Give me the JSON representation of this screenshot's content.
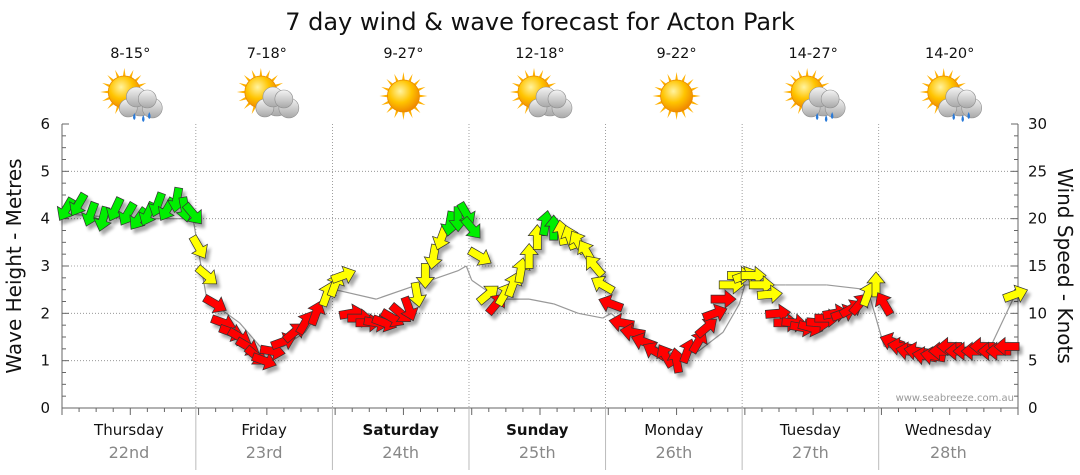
{
  "chart_data": {
    "type": "line",
    "title": "7 day wind & wave forecast for Acton Park",
    "ylabel_left": "Wave Height - Metres",
    "ylabel_right": "Wind Speed - Knots",
    "ylim_left": [
      0,
      6
    ],
    "ylim_right": [
      0,
      30
    ],
    "yticks_left": [
      "0",
      "1",
      "2",
      "3",
      "4",
      "5",
      "6"
    ],
    "yticks_right": [
      "0",
      "5",
      "10",
      "15",
      "20",
      "25",
      "30"
    ],
    "credit": "www.seabreeze.com.au",
    "days": [
      {
        "name": "Thursday",
        "date": "22nd",
        "temp": "8-15°",
        "icon": "sun-cloud-rain-icon",
        "bold": false
      },
      {
        "name": "Friday",
        "date": "23rd",
        "temp": "7-18°",
        "icon": "sun-cloud-icon",
        "bold": false
      },
      {
        "name": "Saturday",
        "date": "24th",
        "temp": "9-27°",
        "icon": "sun-icon",
        "bold": true
      },
      {
        "name": "Sunday",
        "date": "25th",
        "temp": "12-18°",
        "icon": "sun-cloud-icon",
        "bold": true
      },
      {
        "name": "Monday",
        "date": "26th",
        "temp": "9-22°",
        "icon": "sun-icon",
        "bold": false
      },
      {
        "name": "Tuesday",
        "date": "27th",
        "temp": "14-27°",
        "icon": "sun-cloud-rain-icon",
        "bold": false
      },
      {
        "name": "Wednesday",
        "date": "28th",
        "temp": "14-20°",
        "icon": "sun-cloud-rain-icon",
        "bold": false
      }
    ],
    "x_range_days": [
      0,
      7
    ],
    "day_boundaries": [
      0.98,
      1.98,
      2.98,
      3.98,
      4.98,
      5.98
    ],
    "wind_colors": {
      "light": "#00ee00",
      "moderate": "#ffff00",
      "strong": "#ff0000"
    },
    "wind_series": {
      "name": "Wind speed (knots) and direction",
      "x": [
        0.03,
        0.12,
        0.21,
        0.3,
        0.39,
        0.48,
        0.56,
        0.63,
        0.7,
        0.77,
        0.84,
        0.9,
        0.96,
        1.0,
        1.06,
        1.12,
        1.18,
        1.24,
        1.3,
        1.36,
        1.42,
        1.48,
        1.54,
        1.62,
        1.7,
        1.78,
        1.86,
        1.94,
        2.0,
        2.06,
        2.12,
        2.18,
        2.24,
        2.3,
        2.36,
        2.42,
        2.48,
        2.54,
        2.6,
        2.66,
        2.72,
        2.78,
        2.84,
        2.9,
        2.96,
        3.0,
        3.06,
        3.12,
        3.18,
        3.24,
        3.3,
        3.36,
        3.42,
        3.48,
        3.54,
        3.6,
        3.66,
        3.72,
        3.78,
        3.84,
        3.9,
        3.96,
        4.02,
        4.1,
        4.18,
        4.26,
        4.34,
        4.42,
        4.5,
        4.58,
        4.66,
        4.72,
        4.78,
        4.84,
        4.9,
        4.96,
        5.0,
        5.06,
        5.12,
        5.18,
        5.24,
        5.3,
        5.36,
        5.42,
        5.48,
        5.54,
        5.6,
        5.66,
        5.72,
        5.78,
        5.84,
        5.9,
        5.96,
        6.02,
        6.08,
        6.14,
        6.2,
        6.26,
        6.32,
        6.38,
        6.44,
        6.5,
        6.56,
        6.62,
        6.68,
        6.74,
        6.8,
        6.86,
        6.92,
        6.98
      ],
      "y": [
        21,
        21.5,
        20.5,
        20,
        21,
        20.5,
        20,
        20.5,
        21.5,
        21,
        22,
        21,
        20.5,
        17,
        14,
        11,
        9,
        8,
        7.5,
        6.5,
        5.5,
        5,
        6,
        7,
        8,
        9,
        10,
        12,
        13,
        14,
        10,
        9.5,
        9,
        9,
        9,
        9.5,
        10,
        10.5,
        12,
        14,
        16,
        18,
        19.5,
        20,
        20.5,
        19,
        16,
        12,
        11,
        12,
        13,
        14.5,
        16,
        18,
        19.5,
        19,
        18.5,
        18,
        17.5,
        16.5,
        15,
        13,
        11,
        9,
        8,
        7,
        6,
        5.5,
        5,
        6,
        7,
        8.5,
        10,
        11.5,
        13,
        14,
        14,
        14,
        13,
        12,
        10,
        9,
        9,
        8.5,
        8.5,
        9,
        9.5,
        10,
        10,
        10.5,
        11,
        12,
        13,
        11,
        7,
        6.5,
        6,
        6,
        5.5,
        5.5,
        6,
        6.5,
        6,
        6,
        6,
        6.5,
        6,
        6,
        6.5,
        12
      ],
      "dir_deg": [
        30,
        30,
        20,
        15,
        25,
        30,
        35,
        25,
        20,
        30,
        10,
        350,
        320,
        330,
        310,
        300,
        290,
        290,
        300,
        300,
        310,
        290,
        280,
        250,
        230,
        210,
        200,
        200,
        200,
        250,
        260,
        270,
        270,
        280,
        290,
        300,
        310,
        340,
        350,
        0,
        10,
        20,
        10,
        0,
        330,
        320,
        300,
        230,
        220,
        210,
        200,
        190,
        180,
        180,
        190,
        180,
        170,
        160,
        150,
        150,
        140,
        120,
        110,
        100,
        100,
        110,
        120,
        150,
        170,
        200,
        210,
        230,
        250,
        270,
        270,
        270,
        250,
        270,
        270,
        265,
        265,
        270,
        275,
        280,
        285,
        275,
        270,
        260,
        250,
        240,
        220,
        200,
        180,
        150,
        110,
        100,
        100,
        100,
        100,
        100,
        90,
        90,
        90,
        90,
        90,
        90,
        90,
        90,
        90,
        250
      ]
    },
    "wave_series": {
      "name": "Wave height (metres)",
      "x": [
        0.03,
        0.5,
        0.96,
        1.0,
        1.06,
        1.3,
        1.48,
        1.62,
        1.78,
        1.94,
        2.0,
        2.3,
        2.6,
        2.9,
        2.96,
        3.0,
        3.2,
        3.42,
        3.6,
        3.78,
        3.96,
        4.02,
        4.26,
        4.5,
        4.66,
        4.84,
        4.96,
        5.0,
        5.3,
        5.6,
        5.9,
        5.96,
        6.02,
        6.2,
        6.5,
        6.8,
        6.98
      ],
      "y": [
        4.1,
        4.0,
        4.0,
        3.3,
        2.3,
        1.8,
        1.2,
        1.3,
        1.6,
        2.3,
        2.5,
        2.3,
        2.6,
        2.9,
        3.0,
        2.7,
        2.3,
        2.3,
        2.2,
        2.0,
        1.9,
        2.0,
        1.4,
        1.1,
        1.2,
        1.6,
        2.2,
        2.6,
        2.6,
        2.6,
        2.5,
        1.9,
        1.3,
        1.2,
        1.2,
        1.3,
        2.4
      ]
    }
  }
}
